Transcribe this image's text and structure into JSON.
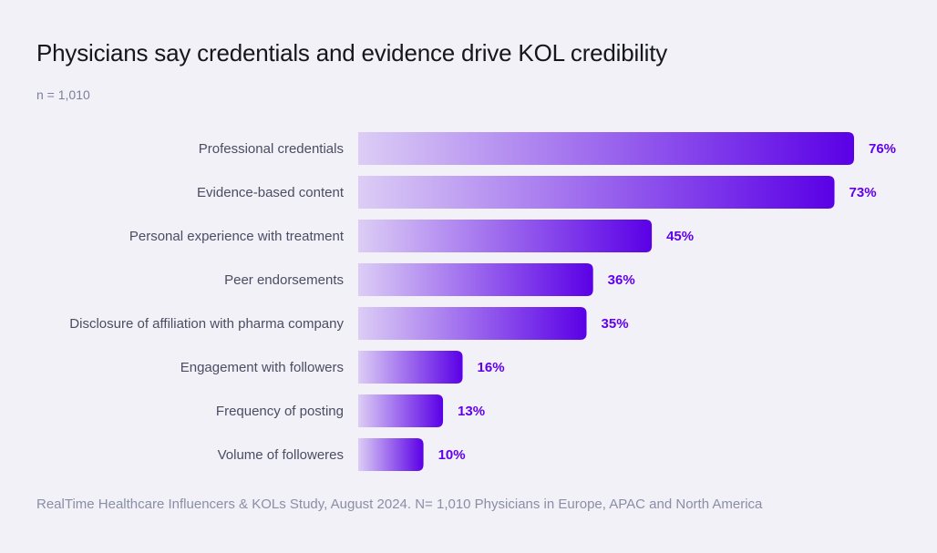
{
  "title": "Physicians say credentials and evidence drive KOL credibility",
  "subtitle": "n = 1,010",
  "footnote": "RealTime Healthcare Influencers & KOLs Study, August 2024. N= 1,010 Physicians in Europe, APAC and North America",
  "colors": {
    "bar_start": "#dccdf5",
    "bar_end": "#5a00e6",
    "value_label": "#6200ea",
    "category_label": "#4a4d63"
  },
  "chart_data": {
    "type": "bar",
    "orientation": "horizontal",
    "categories": [
      "Professional credentials",
      "Evidence-based content",
      "Personal experience with treatment",
      "Peer endorsements",
      "Disclosure of affiliation with pharma company",
      "Engagement with followers",
      "Frequency of posting",
      "Volume of followeres"
    ],
    "values": [
      76,
      73,
      45,
      36,
      35,
      16,
      13,
      10
    ],
    "value_labels": [
      "76%",
      "73%",
      "45%",
      "36%",
      "35%",
      "16%",
      "13%",
      "10%"
    ],
    "unit": "%",
    "xlim": [
      0,
      76
    ],
    "grid": false
  }
}
